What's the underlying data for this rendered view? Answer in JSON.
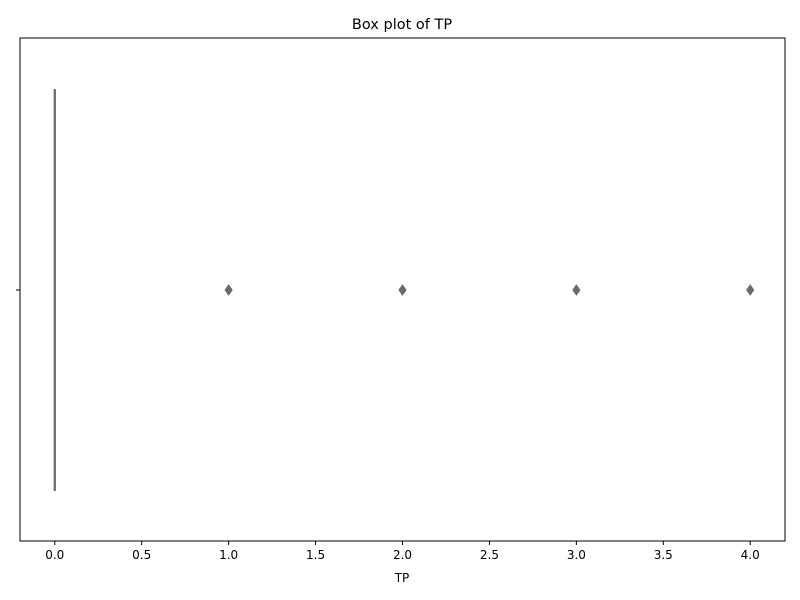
{
  "chart_data": {
    "type": "box",
    "orientation": "horizontal",
    "title": "Box plot of TP",
    "xlabel": "TP",
    "ylabel": "",
    "xlim": [
      -0.2,
      4.2
    ],
    "x_ticks": [
      0.0,
      0.5,
      1.0,
      1.5,
      2.0,
      2.5,
      3.0,
      3.5,
      4.0
    ],
    "x_tick_labels": [
      "0.0",
      "0.5",
      "1.0",
      "1.5",
      "2.0",
      "2.5",
      "3.0",
      "3.5",
      "4.0"
    ],
    "grid": false,
    "series": [
      {
        "whisker_low": 0,
        "q1": 0,
        "median": 0,
        "q3": 0,
        "whisker_high": 0,
        "outliers": [
          1,
          2,
          3,
          4
        ]
      }
    ],
    "colors": {
      "box": "#6b6b6b",
      "outlier_fill": "#6b6b6b",
      "axis": "#000000"
    }
  }
}
